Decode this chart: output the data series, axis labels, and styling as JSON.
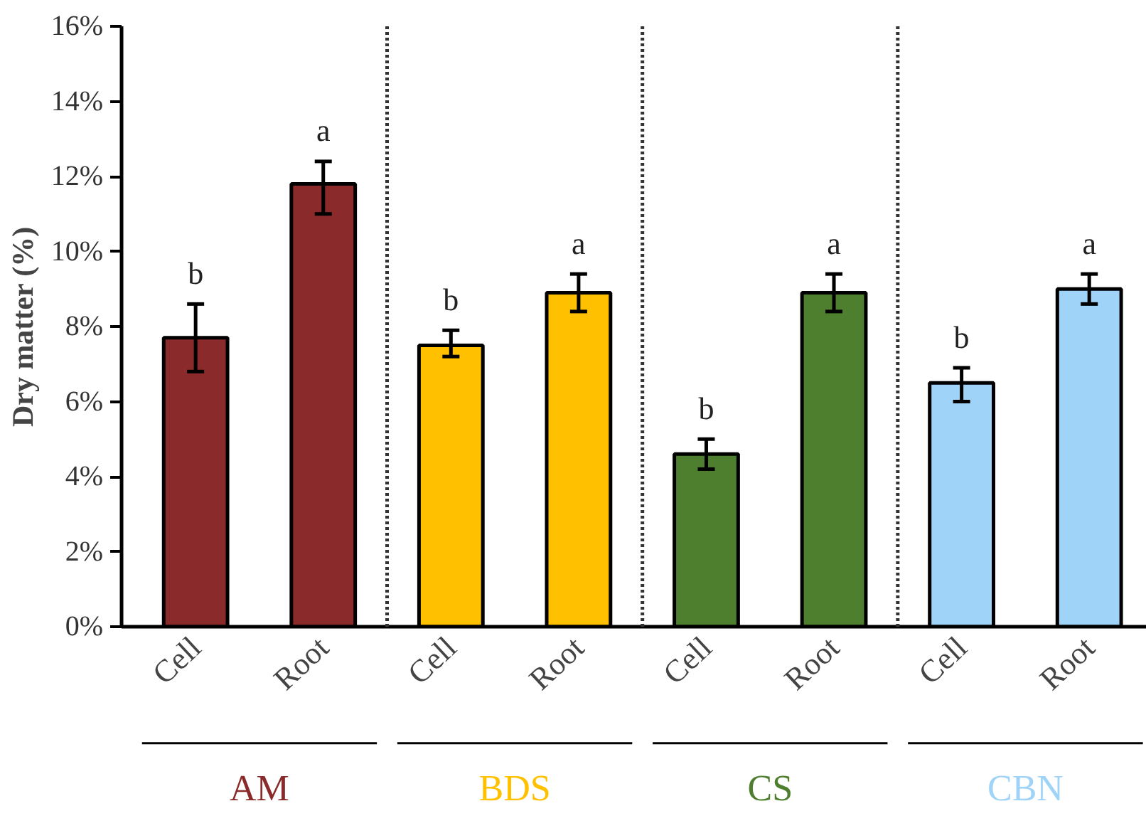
{
  "chart_data": {
    "type": "bar",
    "ylabel": "Dry matter (%)",
    "categories": [
      "Cell",
      "Root",
      "Cell",
      "Root",
      "Cell",
      "Root",
      "Cell",
      "Root"
    ],
    "values": [
      7.7,
      11.8,
      7.5,
      8.9,
      4.6,
      8.9,
      6.5,
      9.0
    ],
    "colors": [
      "#8b2a2a",
      "#8b2a2a",
      "#ffc000",
      "#ffc000",
      "#4e7f2e",
      "#4e7f2e",
      "#9fd3f7",
      "#9fd3f7"
    ],
    "errors": [
      [
        6.8,
        8.6
      ],
      [
        11.0,
        12.4
      ],
      [
        7.2,
        7.9
      ],
      [
        8.4,
        9.4
      ],
      [
        4.2,
        5.0
      ],
      [
        8.4,
        9.4
      ],
      [
        6.0,
        6.9
      ],
      [
        8.6,
        9.4
      ]
    ],
    "value_labels": [
      "b",
      "a",
      "b",
      "a",
      "b",
      "a",
      "b",
      "a"
    ],
    "ylim": [
      0,
      16
    ],
    "yticks": [
      {
        "value": 0,
        "label": "0%"
      },
      {
        "value": 2,
        "label": "2%"
      },
      {
        "value": 4,
        "label": "4%"
      },
      {
        "value": 6,
        "label": "6%"
      },
      {
        "value": 8,
        "label": "8%"
      },
      {
        "value": 10,
        "label": "10%"
      },
      {
        "value": 12,
        "label": "12%"
      },
      {
        "value": 14,
        "label": "14%"
      },
      {
        "value": 16,
        "label": "16%"
      }
    ],
    "annotations": [
      "AM",
      "BDS",
      "CS",
      "CBN"
    ],
    "grid": false
  }
}
